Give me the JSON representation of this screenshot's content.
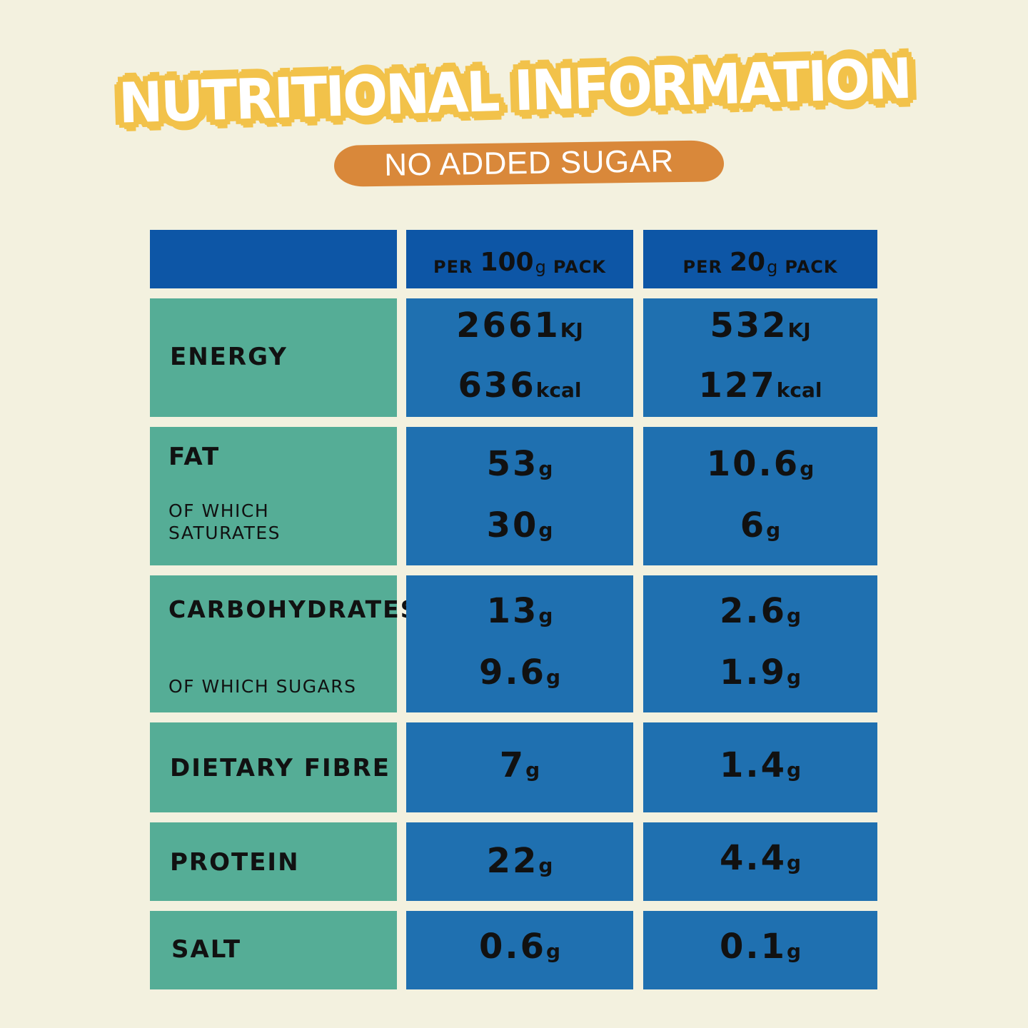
{
  "title": "NUTRITIONAL INFORMATION",
  "subtitle": "NO ADDED SUGAR",
  "columns": [
    {
      "prefix": "PER",
      "amount": "100",
      "unit": "g",
      "suffix": "PACK"
    },
    {
      "prefix": "PER",
      "amount": "20",
      "unit": "g",
      "suffix": "PACK"
    }
  ],
  "rows": {
    "energy": {
      "label": "ENERGY",
      "per100": {
        "kj": "2661",
        "kj_unit": "KJ",
        "kcal": "636",
        "kcal_unit": "kcal"
      },
      "per20": {
        "kj": "532",
        "kj_unit": "KJ",
        "kcal": "127",
        "kcal_unit": "kcal"
      }
    },
    "fat": {
      "label": "FAT",
      "sub_label_1": "OF WHICH",
      "sub_label_2": "SATURATES",
      "per100": {
        "main": "53",
        "sub": "30"
      },
      "per20": {
        "main": "10.6",
        "sub": "6"
      }
    },
    "carbohydrates": {
      "label": "CARBOHYDRATES",
      "sub_label": "OF WHICH SUGARS",
      "per100": {
        "main": "13",
        "sub": "9.6"
      },
      "per20": {
        "main": "2.6",
        "sub": "1.9"
      }
    },
    "fibre": {
      "label": "DIETARY FIBRE",
      "per100": "7",
      "per20": "1.4"
    },
    "protein": {
      "label": "PROTEIN",
      "per100": "22",
      "per20": "4.4"
    },
    "salt": {
      "label": "SALT",
      "per100": "0.6",
      "per20": "0.1"
    }
  },
  "unit_g": "g",
  "colors": {
    "background": "#f3f1df",
    "title_outline": "#f2c24a",
    "subtitle_pill": "#d9883a",
    "header_blue": "#0d56a6",
    "label_green": "#55ad96",
    "value_blue": "#1f70b0"
  }
}
